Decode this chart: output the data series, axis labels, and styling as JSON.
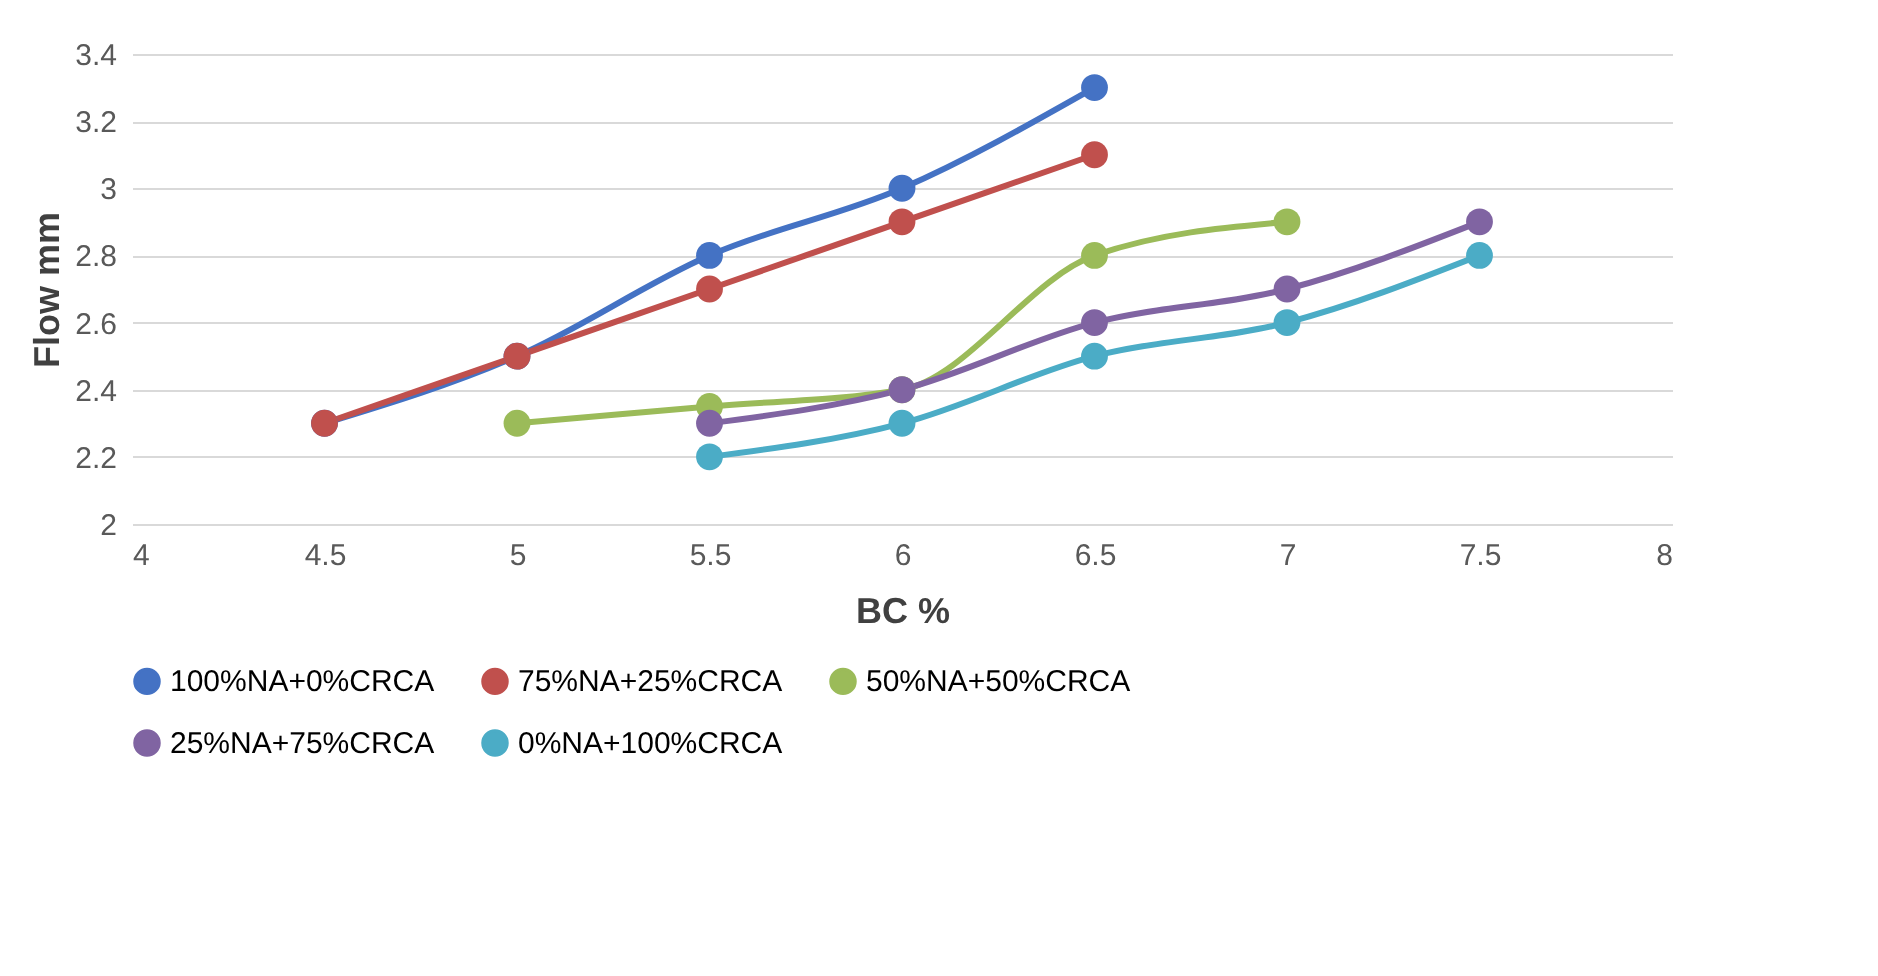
{
  "chart_data": {
    "type": "line",
    "xlabel": "BC %",
    "ylabel": "Flow   mm",
    "xlim": [
      4,
      8
    ],
    "xticks": [
      4,
      4.5,
      5,
      5.5,
      6,
      6.5,
      7,
      7.5,
      8
    ],
    "ylim": [
      2,
      3.4
    ],
    "yticks": [
      2,
      2.2,
      2.4,
      2.6,
      2.8,
      3,
      3.2,
      3.4
    ],
    "grid": "y",
    "legend": "bottom",
    "marker": "circle",
    "line_style": "solid",
    "series": [
      {
        "name": "100%NA+0%CRCA",
        "color": "#4472c4",
        "x": [
          4.5,
          5,
          5.5,
          6,
          6.5
        ],
        "values": [
          2.3,
          2.5,
          2.8,
          3.0,
          3.3
        ]
      },
      {
        "name": "75%NA+25%CRCA",
        "color": "#c0504d",
        "x": [
          4.5,
          5,
          5.5,
          6,
          6.5
        ],
        "values": [
          2.3,
          2.5,
          2.7,
          2.9,
          3.1
        ]
      },
      {
        "name": "50%NA+50%CRCA",
        "color": "#9bbb59",
        "x": [
          5,
          5.5,
          6,
          6.5,
          7
        ],
        "values": [
          2.3,
          2.35,
          2.4,
          2.8,
          2.9
        ]
      },
      {
        "name": "25%NA+75%CRCA",
        "color": "#8064a2",
        "x": [
          5.5,
          6,
          6.5,
          7,
          7.5
        ],
        "values": [
          2.3,
          2.4,
          2.6,
          2.7,
          2.9
        ]
      },
      {
        "name": "0%NA+100%CRCA",
        "color": "#4bacc6",
        "x": [
          5.5,
          6,
          6.5,
          7,
          7.5
        ],
        "values": [
          2.2,
          2.3,
          2.5,
          2.6,
          2.8
        ]
      }
    ]
  }
}
